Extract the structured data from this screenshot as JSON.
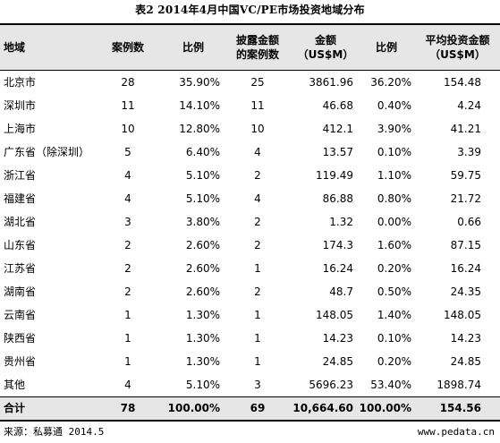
{
  "title": "表2 2014年4月中国VC/PE市场投资地域分布",
  "headers": {
    "region": "地域",
    "cases": "案例数",
    "ratio": "比例",
    "disclosed": "披露金额\n的案例数",
    "amount": "金额\n（US$M）",
    "amount_ratio": "比例",
    "avg": "平均投资金额\n（US$M）"
  },
  "rows": [
    {
      "region": "北京市",
      "cases": "28",
      "ratio": "35.90%",
      "disclosed": "25",
      "amount": "3861.96",
      "amount_ratio": "36.20%",
      "avg": "154.48"
    },
    {
      "region": "深圳市",
      "cases": "11",
      "ratio": "14.10%",
      "disclosed": "11",
      "amount": "46.68",
      "amount_ratio": "0.40%",
      "avg": "4.24"
    },
    {
      "region": "上海市",
      "cases": "10",
      "ratio": "12.80%",
      "disclosed": "10",
      "amount": "412.1",
      "amount_ratio": "3.90%",
      "avg": "41.21"
    },
    {
      "region": "广东省（除深圳）",
      "cases": "5",
      "ratio": "6.40%",
      "disclosed": "4",
      "amount": "13.57",
      "amount_ratio": "0.10%",
      "avg": "3.39"
    },
    {
      "region": "浙江省",
      "cases": "4",
      "ratio": "5.10%",
      "disclosed": "2",
      "amount": "119.49",
      "amount_ratio": "1.10%",
      "avg": "59.75"
    },
    {
      "region": "福建省",
      "cases": "4",
      "ratio": "5.10%",
      "disclosed": "4",
      "amount": "86.88",
      "amount_ratio": "0.80%",
      "avg": "21.72"
    },
    {
      "region": "湖北省",
      "cases": "3",
      "ratio": "3.80%",
      "disclosed": "2",
      "amount": "1.32",
      "amount_ratio": "0.00%",
      "avg": "0.66"
    },
    {
      "region": "山东省",
      "cases": "2",
      "ratio": "2.60%",
      "disclosed": "2",
      "amount": "174.3",
      "amount_ratio": "1.60%",
      "avg": "87.15"
    },
    {
      "region": "江苏省",
      "cases": "2",
      "ratio": "2.60%",
      "disclosed": "1",
      "amount": "16.24",
      "amount_ratio": "0.20%",
      "avg": "16.24"
    },
    {
      "region": "湖南省",
      "cases": "2",
      "ratio": "2.60%",
      "disclosed": "2",
      "amount": "48.7",
      "amount_ratio": "0.50%",
      "avg": "24.35"
    },
    {
      "region": "云南省",
      "cases": "1",
      "ratio": "1.30%",
      "disclosed": "1",
      "amount": "148.05",
      "amount_ratio": "1.40%",
      "avg": "148.05"
    },
    {
      "region": "陕西省",
      "cases": "1",
      "ratio": "1.30%",
      "disclosed": "1",
      "amount": "14.23",
      "amount_ratio": "0.10%",
      "avg": "14.23"
    },
    {
      "region": "贵州省",
      "cases": "1",
      "ratio": "1.30%",
      "disclosed": "1",
      "amount": "24.85",
      "amount_ratio": "0.20%",
      "avg": "24.85"
    },
    {
      "region": "其他",
      "cases": "4",
      "ratio": "5.10%",
      "disclosed": "3",
      "amount": "5696.23",
      "amount_ratio": "53.40%",
      "avg": "1898.74"
    }
  ],
  "total": {
    "region": "合计",
    "cases": "78",
    "ratio": "100.00%",
    "disclosed": "69",
    "amount": "10,664.60",
    "amount_ratio": "100.00%",
    "avg": "154.56"
  },
  "footer": {
    "source": "来源：私募通  2014.5",
    "site": "www.pedata.cn"
  }
}
